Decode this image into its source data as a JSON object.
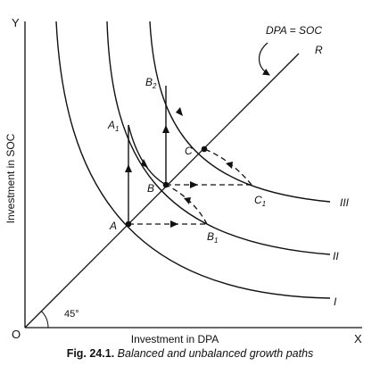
{
  "figure": {
    "axes": {
      "y_letter": "Y",
      "x_letter": "X",
      "origin": "O",
      "y_label": "Investment in SOC",
      "x_label": "Investment in DPA"
    },
    "diagonal": {
      "label": "DPA = SOC",
      "end_label": "R",
      "angle_label": "45°"
    },
    "curves": [
      "I",
      "II",
      "III"
    ],
    "points": {
      "A": "A",
      "B": "B",
      "C": "C",
      "A1": "A",
      "A1_sub": "1",
      "B1": "B",
      "B1_sub": "1",
      "B2": "B",
      "B2_sub": "2",
      "C1": "C",
      "C1_sub": "1"
    }
  },
  "caption": {
    "number": "Fig. 24.1.",
    "text": "Balanced and unbalanced growth paths"
  }
}
